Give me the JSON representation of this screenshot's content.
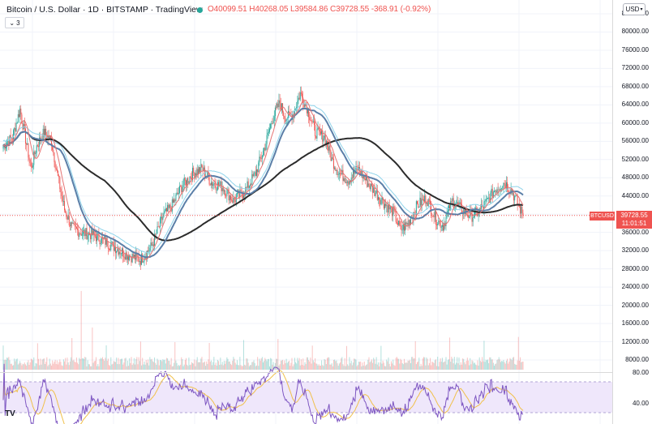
{
  "header": {
    "title": "Bitcoin / U.S. Dollar · 1D · BITSTAMP · TradingView",
    "ohlc": "O40099.51 H40268.05 L39584.86 C39728.55 -368.91 (-0.92%)",
    "indicators_count": "3"
  },
  "price_axis": {
    "currency": "USD",
    "ticks": [
      "84000.00",
      "80000.00",
      "76000.00",
      "72000.00",
      "68000.00",
      "64000.00",
      "60000.00",
      "56000.00",
      "52000.00",
      "48000.00",
      "44000.00",
      "40000.00",
      "36000.00",
      "32000.00",
      "28000.00",
      "24000.00",
      "20000.00",
      "16000.00",
      "12000.00",
      "8000.00"
    ],
    "rsi_ticks": [
      "80.00",
      "40.00"
    ]
  },
  "last_price": {
    "symbol": "BTCUSD",
    "price": "39728.55",
    "countdown": "11:01:51"
  },
  "colors": {
    "up": "#26a69a",
    "down": "#ef5350",
    "ma_fast": "#e57373",
    "ma_mid": "#5b7fa8",
    "ma_slow": "#2b2b2b",
    "band": "#8fd3ea",
    "rsi_line": "#7e57c2",
    "rsi_signal": "#f0c04a",
    "rsi_band": "#efe7fb"
  },
  "logo_text": "TV",
  "chart_data": {
    "type": "candlestick",
    "symbol": "BTCUSD",
    "timeframe": "1D",
    "last_close": 39728.55,
    "y_range": [
      4000,
      86000
    ],
    "rsi_range": [
      25,
      85
    ],
    "keypoints": [
      {
        "i": 0,
        "close": 55000
      },
      {
        "i": 10,
        "close": 57000
      },
      {
        "i": 18,
        "close": 63000
      },
      {
        "i": 24,
        "close": 56500
      },
      {
        "i": 30,
        "close": 50000
      },
      {
        "i": 36,
        "close": 55000
      },
      {
        "i": 44,
        "close": 58000
      },
      {
        "i": 52,
        "close": 56000
      },
      {
        "i": 58,
        "close": 49000
      },
      {
        "i": 66,
        "close": 41000
      },
      {
        "i": 74,
        "close": 37000
      },
      {
        "i": 84,
        "close": 36000
      },
      {
        "i": 96,
        "close": 35500
      },
      {
        "i": 110,
        "close": 34000
      },
      {
        "i": 122,
        "close": 32500
      },
      {
        "i": 134,
        "close": 31000
      },
      {
        "i": 148,
        "close": 30000
      },
      {
        "i": 160,
        "close": 33000
      },
      {
        "i": 172,
        "close": 39500
      },
      {
        "i": 182,
        "close": 42000
      },
      {
        "i": 192,
        "close": 46000
      },
      {
        "i": 204,
        "close": 49000
      },
      {
        "i": 214,
        "close": 50000
      },
      {
        "i": 224,
        "close": 47000
      },
      {
        "i": 236,
        "close": 46000
      },
      {
        "i": 248,
        "close": 43000
      },
      {
        "i": 260,
        "close": 45000
      },
      {
        "i": 272,
        "close": 49000
      },
      {
        "i": 282,
        "close": 55000
      },
      {
        "i": 290,
        "close": 61000
      },
      {
        "i": 298,
        "close": 64500
      },
      {
        "i": 304,
        "close": 61000
      },
      {
        "i": 312,
        "close": 62000
      },
      {
        "i": 320,
        "close": 66500
      },
      {
        "i": 328,
        "close": 63000
      },
      {
        "i": 336,
        "close": 58000
      },
      {
        "i": 346,
        "close": 57000
      },
      {
        "i": 354,
        "close": 52000
      },
      {
        "i": 362,
        "close": 49000
      },
      {
        "i": 372,
        "close": 47500
      },
      {
        "i": 382,
        "close": 50000
      },
      {
        "i": 392,
        "close": 47000
      },
      {
        "i": 402,
        "close": 44500
      },
      {
        "i": 412,
        "close": 42000
      },
      {
        "i": 420,
        "close": 40500
      },
      {
        "i": 428,
        "close": 36500
      },
      {
        "i": 436,
        "close": 38000
      },
      {
        "i": 446,
        "close": 42000
      },
      {
        "i": 456,
        "close": 43500
      },
      {
        "i": 466,
        "close": 39000
      },
      {
        "i": 474,
        "close": 37500
      },
      {
        "i": 484,
        "close": 43000
      },
      {
        "i": 494,
        "close": 41000
      },
      {
        "i": 504,
        "close": 39500
      },
      {
        "i": 512,
        "close": 40500
      },
      {
        "i": 520,
        "close": 42500
      },
      {
        "i": 530,
        "close": 45500
      },
      {
        "i": 540,
        "close": 47000
      },
      {
        "i": 548,
        "close": 45000
      },
      {
        "i": 556,
        "close": 41500
      },
      {
        "i": 560,
        "close": 39728.55
      }
    ]
  }
}
